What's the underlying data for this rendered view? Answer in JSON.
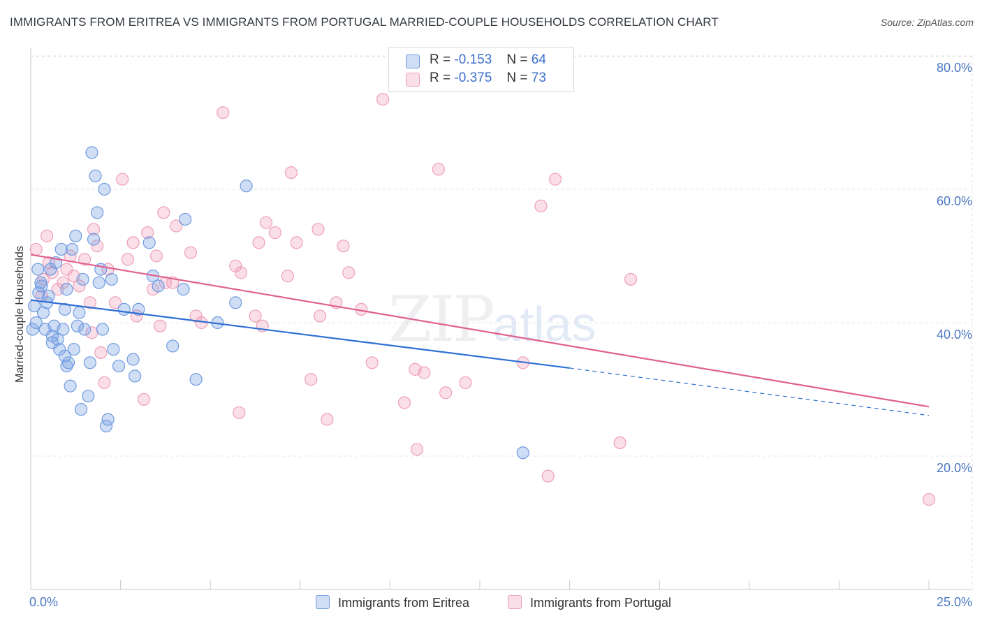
{
  "title": "IMMIGRANTS FROM ERITREA VS IMMIGRANTS FROM PORTUGAL MARRIED-COUPLE HOUSEHOLDS CORRELATION CHART",
  "source": "Source: ZipAtlas.com",
  "watermark": {
    "zip": "ZIP",
    "atlas": "atlas"
  },
  "legend": {
    "r_label": "R =",
    "n_label": "N =",
    "rows": [
      {
        "r": "-0.153",
        "n": "64"
      },
      {
        "r": "-0.375",
        "n": "73"
      }
    ]
  },
  "colors": {
    "eritrea_fill": "rgba(120,160,225,0.35)",
    "eritrea_stroke": "#6f9be0",
    "eritrea_line": "#2d6fd4",
    "portugal_fill": "rgba(240,150,180,0.30)",
    "portugal_stroke": "#eea0b8",
    "portugal_line": "#e0608e",
    "axis_tick": "#4a78c2",
    "grid": "#e3e3e3"
  },
  "chart_data": {
    "type": "scatter",
    "title": "IMMIGRANTS FROM ERITREA VS IMMIGRANTS FROM PORTUGAL MARRIED-COUPLE HOUSEHOLDS CORRELATION CHART",
    "xlabel": "",
    "ylabel": "Married-couple Households",
    "xlim": [
      0,
      25
    ],
    "ylim": [
      0,
      82
    ],
    "x_tick_labels": [
      "0.0%",
      "25.0%"
    ],
    "y_ticks": [
      20,
      40,
      60,
      80
    ],
    "y_tick_labels": [
      "20.0%",
      "40.0%",
      "60.0%",
      "80.0%"
    ],
    "grid": true,
    "legend_position": "bottom",
    "series": [
      {
        "name": "Immigrants from Eritrea",
        "r": -0.153,
        "n": 64,
        "trend": {
          "x0": 0,
          "y0": 43.4,
          "x1": 15,
          "y1": 33.2,
          "dashed_to_x": 25,
          "dashed_to_y": 26.1
        },
        "points": [
          [
            0.05,
            39.0
          ],
          [
            0.1,
            42.5
          ],
          [
            0.15,
            40.0
          ],
          [
            0.2,
            48.0
          ],
          [
            0.22,
            44.5
          ],
          [
            0.3,
            45.5
          ],
          [
            0.35,
            41.5
          ],
          [
            0.4,
            39.0
          ],
          [
            0.45,
            43.0
          ],
          [
            0.5,
            44.0
          ],
          [
            0.55,
            48.0
          ],
          [
            0.6,
            38.0
          ],
          [
            0.65,
            39.5
          ],
          [
            0.7,
            49.0
          ],
          [
            0.75,
            37.5
          ],
          [
            0.8,
            36.0
          ],
          [
            0.85,
            51.0
          ],
          [
            0.9,
            39.0
          ],
          [
            0.95,
            35.0
          ],
          [
            1.0,
            33.5
          ],
          [
            1.05,
            34.0
          ],
          [
            1.1,
            30.5
          ],
          [
            1.15,
            51.0
          ],
          [
            1.2,
            36.0
          ],
          [
            1.25,
            53.0
          ],
          [
            1.3,
            39.5
          ],
          [
            1.35,
            41.5
          ],
          [
            1.4,
            27.0
          ],
          [
            1.45,
            46.5
          ],
          [
            1.5,
            39.0
          ],
          [
            1.6,
            29.0
          ],
          [
            1.65,
            34.0
          ],
          [
            1.7,
            65.5
          ],
          [
            1.75,
            52.5
          ],
          [
            1.8,
            62.0
          ],
          [
            1.85,
            56.5
          ],
          [
            1.9,
            46.0
          ],
          [
            1.95,
            48.0
          ],
          [
            2.0,
            39.0
          ],
          [
            2.05,
            60.0
          ],
          [
            2.1,
            24.5
          ],
          [
            2.15,
            25.5
          ],
          [
            2.25,
            46.5
          ],
          [
            2.3,
            36.0
          ],
          [
            2.45,
            33.5
          ],
          [
            2.6,
            42.0
          ],
          [
            2.85,
            34.5
          ],
          [
            2.9,
            32.0
          ],
          [
            3.3,
            52.0
          ],
          [
            3.4,
            47.0
          ],
          [
            3.0,
            42.0
          ],
          [
            3.55,
            45.5
          ],
          [
            3.95,
            36.5
          ],
          [
            4.25,
            45.0
          ],
          [
            4.3,
            55.5
          ],
          [
            4.6,
            31.5
          ],
          [
            6.0,
            60.5
          ],
          [
            5.2,
            40.0
          ],
          [
            5.7,
            43.0
          ],
          [
            0.28,
            46.0
          ],
          [
            1.0,
            45.0
          ],
          [
            0.6,
            37.0
          ],
          [
            13.7,
            20.5
          ],
          [
            0.95,
            42.0
          ]
        ]
      },
      {
        "name": "Immigrants from Portugal",
        "r": -0.375,
        "n": 73,
        "trend": {
          "x0": 0,
          "y0": 50.2,
          "x1": 25,
          "y1": 27.4
        },
        "points": [
          [
            0.15,
            51.0
          ],
          [
            0.3,
            44.0
          ],
          [
            0.45,
            53.0
          ],
          [
            0.5,
            49.0
          ],
          [
            0.6,
            47.5
          ],
          [
            0.75,
            45.0
          ],
          [
            0.9,
            46.0
          ],
          [
            1.0,
            48.0
          ],
          [
            1.1,
            50.0
          ],
          [
            1.2,
            47.0
          ],
          [
            1.35,
            45.5
          ],
          [
            1.5,
            49.5
          ],
          [
            1.65,
            43.0
          ],
          [
            1.7,
            38.5
          ],
          [
            1.75,
            54.0
          ],
          [
            1.85,
            51.5
          ],
          [
            1.95,
            35.5
          ],
          [
            2.05,
            31.0
          ],
          [
            2.15,
            48.0
          ],
          [
            2.35,
            43.0
          ],
          [
            2.55,
            61.5
          ],
          [
            2.7,
            49.5
          ],
          [
            2.85,
            52.0
          ],
          [
            2.95,
            41.0
          ],
          [
            3.15,
            28.5
          ],
          [
            3.25,
            53.5
          ],
          [
            3.4,
            45.0
          ],
          [
            3.5,
            50.0
          ],
          [
            3.6,
            39.5
          ],
          [
            3.7,
            56.5
          ],
          [
            3.75,
            46.0
          ],
          [
            3.95,
            46.0
          ],
          [
            4.05,
            54.5
          ],
          [
            4.45,
            50.5
          ],
          [
            4.6,
            41.0
          ],
          [
            4.75,
            40.0
          ],
          [
            5.35,
            71.5
          ],
          [
            5.7,
            48.5
          ],
          [
            5.8,
            26.5
          ],
          [
            5.85,
            47.5
          ],
          [
            6.25,
            41.0
          ],
          [
            6.35,
            52.0
          ],
          [
            6.45,
            39.5
          ],
          [
            6.55,
            55.0
          ],
          [
            6.8,
            53.5
          ],
          [
            7.15,
            47.0
          ],
          [
            7.25,
            62.5
          ],
          [
            7.4,
            52.0
          ],
          [
            7.8,
            31.5
          ],
          [
            8.0,
            54.0
          ],
          [
            8.05,
            41.0
          ],
          [
            8.25,
            25.5
          ],
          [
            8.5,
            43.0
          ],
          [
            8.7,
            51.5
          ],
          [
            8.85,
            47.5
          ],
          [
            9.2,
            42.0
          ],
          [
            9.5,
            34.0
          ],
          [
            9.8,
            73.5
          ],
          [
            10.4,
            28.0
          ],
          [
            10.7,
            33.0
          ],
          [
            10.75,
            21.0
          ],
          [
            10.95,
            32.5
          ],
          [
            11.35,
            63.0
          ],
          [
            11.55,
            29.5
          ],
          [
            12.1,
            31.0
          ],
          [
            13.7,
            34.0
          ],
          [
            14.2,
            57.5
          ],
          [
            14.4,
            17.0
          ],
          [
            14.6,
            61.5
          ],
          [
            16.4,
            22.0
          ],
          [
            16.7,
            46.5
          ],
          [
            25.0,
            13.5
          ],
          [
            0.35,
            46.5
          ]
        ]
      }
    ]
  }
}
